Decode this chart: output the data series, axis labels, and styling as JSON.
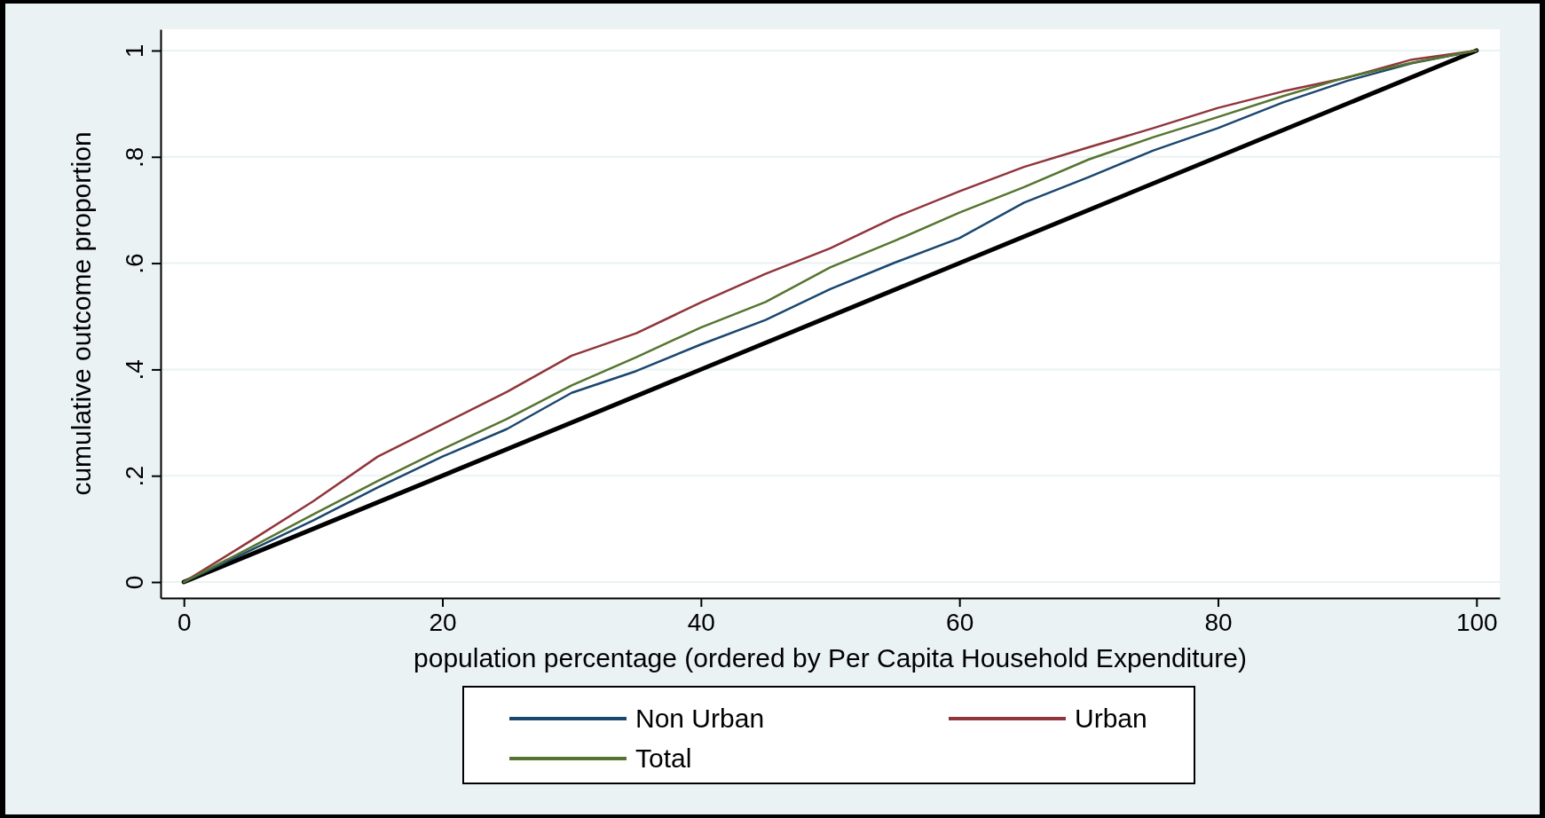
{
  "chart_data": {
    "type": "line",
    "xlabel": "population percentage (ordered by Per Capita Household Expenditure)",
    "ylabel": "cumulative outcome proportion",
    "x": [
      0,
      5,
      10,
      15,
      20,
      25,
      30,
      35,
      40,
      45,
      50,
      55,
      60,
      65,
      70,
      75,
      80,
      85,
      90,
      95,
      100
    ],
    "series": [
      {
        "name": "Non Urban",
        "color": "#1a476f",
        "values": [
          0,
          0.058,
          0.116,
          0.178,
          0.236,
          0.288,
          0.356,
          0.397,
          0.447,
          0.493,
          0.551,
          0.601,
          0.647,
          0.714,
          0.762,
          0.812,
          0.854,
          0.902,
          0.943,
          0.976,
          1
        ]
      },
      {
        "name": "Urban",
        "color": "#90353b",
        "values": [
          0,
          0.075,
          0.152,
          0.236,
          0.297,
          0.358,
          0.426,
          0.468,
          0.526,
          0.58,
          0.628,
          0.686,
          0.735,
          0.781,
          0.818,
          0.854,
          0.892,
          0.923,
          0.949,
          0.983,
          1
        ]
      },
      {
        "name": "Total",
        "color": "#55752f",
        "values": [
          0,
          0.063,
          0.127,
          0.19,
          0.25,
          0.307,
          0.37,
          0.423,
          0.479,
          0.527,
          0.592,
          0.642,
          0.695,
          0.743,
          0.795,
          0.837,
          0.875,
          0.914,
          0.95,
          0.977,
          1
        ]
      },
      {
        "color": "#000000",
        "x": [
          0,
          100
        ],
        "values": [
          0,
          1
        ]
      }
    ],
    "xlim": [
      -1.8,
      101.8
    ],
    "ylim": [
      -0.03,
      1.04
    ],
    "xticks": [
      0,
      20,
      40,
      60,
      80,
      100
    ],
    "yticks": [
      0,
      {
        "value": 0.2,
        "label": ".2"
      },
      {
        "value": 0.4,
        "label": ".4"
      },
      {
        "value": 0.6,
        "label": ".6"
      },
      {
        "value": 0.8,
        "label": ".8"
      },
      1
    ],
    "grid": "y",
    "legend": "bottom",
    "line_style": "solid",
    "marker": "none"
  }
}
